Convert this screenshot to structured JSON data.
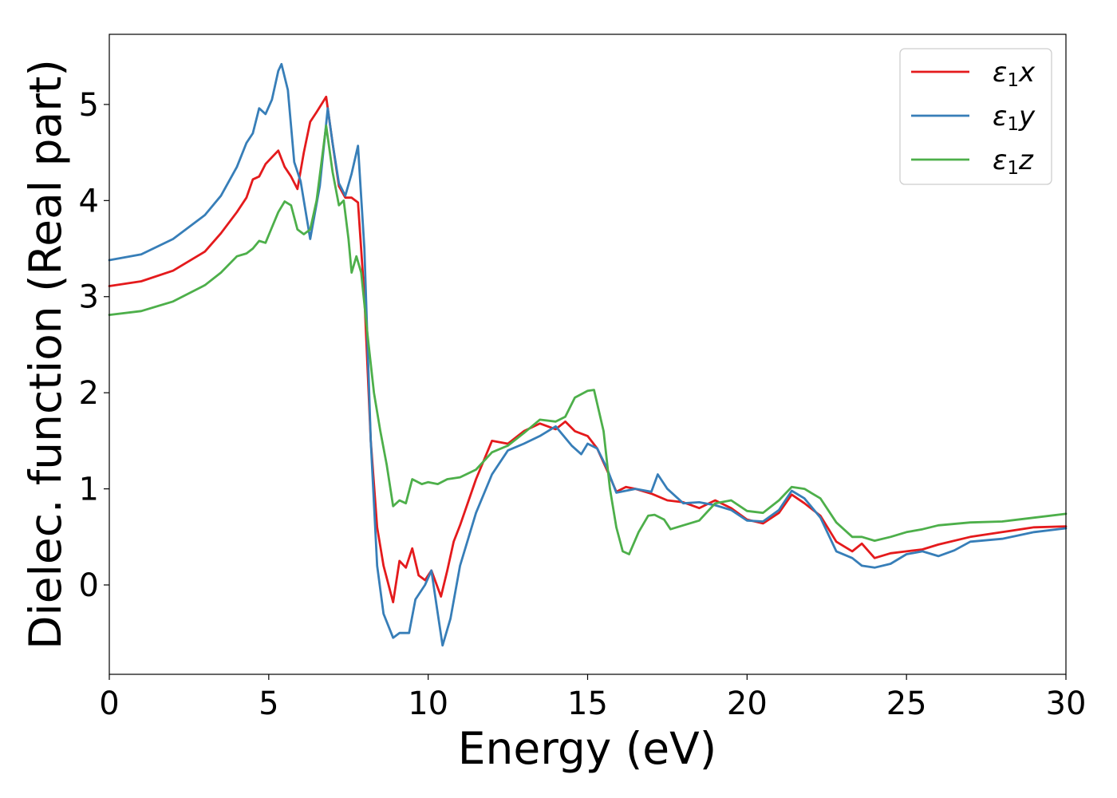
{
  "chart_data": {
    "type": "line",
    "title": "",
    "xlabel": "Energy (eV)",
    "ylabel": "Dielec. function (Real part)",
    "xlim": [
      0,
      30
    ],
    "ylim": [
      -0.93,
      5.73
    ],
    "xticks": [
      0,
      5,
      10,
      15,
      20,
      25,
      30
    ],
    "yticks": [
      0,
      1,
      2,
      3,
      4,
      5
    ],
    "grid": false,
    "legend_position": "top-right",
    "series": [
      {
        "name": "ε1x",
        "legend_base": "ε",
        "legend_sub": "1",
        "legend_tail": "x",
        "color": "#e41a1c",
        "x": [
          0,
          1,
          2,
          3,
          3.5,
          4,
          4.3,
          4.5,
          4.7,
          4.9,
          5.1,
          5.3,
          5.5,
          5.7,
          5.9,
          6.1,
          6.3,
          6.5,
          6.8,
          7.0,
          7.2,
          7.4,
          7.6,
          7.8,
          8.0,
          8.2,
          8.4,
          8.6,
          8.9,
          9.1,
          9.3,
          9.5,
          9.7,
          9.9,
          10.1,
          10.4,
          10.6,
          10.8,
          11.0,
          11.5,
          12.0,
          12.5,
          13.0,
          13.5,
          14.0,
          14.3,
          14.6,
          15.0,
          15.3,
          15.6,
          15.9,
          16.2,
          16.5,
          17.0,
          17.5,
          18.0,
          18.5,
          19.0,
          19.5,
          20.0,
          20.5,
          21.0,
          21.4,
          21.8,
          22.3,
          22.8,
          23.3,
          23.6,
          24.0,
          24.5,
          25.0,
          25.5,
          26.0,
          27.0,
          28.0,
          29.0,
          30.0
        ],
        "y": [
          3.11,
          3.16,
          3.27,
          3.47,
          3.66,
          3.88,
          4.03,
          4.22,
          4.25,
          4.38,
          4.45,
          4.52,
          4.35,
          4.25,
          4.12,
          4.5,
          4.82,
          4.92,
          5.08,
          4.6,
          4.15,
          4.03,
          4.03,
          3.98,
          3.0,
          1.5,
          0.6,
          0.2,
          -0.18,
          0.25,
          0.18,
          0.38,
          0.1,
          0.05,
          0.15,
          -0.12,
          0.15,
          0.45,
          0.62,
          1.1,
          1.5,
          1.47,
          1.6,
          1.68,
          1.62,
          1.7,
          1.6,
          1.55,
          1.42,
          1.2,
          0.97,
          1.02,
          1.0,
          0.95,
          0.88,
          0.86,
          0.8,
          0.88,
          0.8,
          0.68,
          0.64,
          0.75,
          0.94,
          0.85,
          0.72,
          0.45,
          0.35,
          0.43,
          0.28,
          0.33,
          0.35,
          0.37,
          0.42,
          0.5,
          0.55,
          0.6,
          0.61
        ]
      },
      {
        "name": "ε1y",
        "legend_base": "ε",
        "legend_sub": "1",
        "legend_tail": "y",
        "color": "#377eb8",
        "x": [
          0,
          1,
          2,
          3,
          3.5,
          4,
          4.3,
          4.5,
          4.7,
          4.9,
          5.1,
          5.3,
          5.4,
          5.6,
          5.8,
          6.0,
          6.3,
          6.6,
          6.85,
          7.0,
          7.2,
          7.4,
          7.6,
          7.8,
          8.0,
          8.2,
          8.4,
          8.6,
          8.9,
          9.1,
          9.4,
          9.6,
          9.9,
          10.1,
          10.3,
          10.45,
          10.7,
          11.0,
          11.5,
          12.0,
          12.5,
          13.0,
          13.5,
          14.0,
          14.5,
          14.8,
          15.0,
          15.3,
          15.6,
          15.9,
          16.2,
          16.5,
          17.0,
          17.2,
          17.5,
          18.0,
          18.5,
          19.0,
          19.5,
          20.0,
          20.5,
          21.0,
          21.4,
          21.8,
          22.3,
          22.8,
          23.3,
          23.6,
          24.0,
          24.5,
          25.0,
          25.5,
          26.0,
          26.5,
          27.0,
          28.0,
          29.0,
          30.0
        ],
        "y": [
          3.38,
          3.44,
          3.6,
          3.85,
          4.05,
          4.35,
          4.6,
          4.7,
          4.96,
          4.9,
          5.05,
          5.35,
          5.42,
          5.15,
          4.4,
          4.2,
          3.6,
          4.15,
          4.96,
          4.6,
          4.18,
          4.05,
          4.28,
          4.57,
          3.5,
          1.5,
          0.2,
          -0.3,
          -0.55,
          -0.5,
          -0.5,
          -0.15,
          0.0,
          0.15,
          -0.3,
          -0.63,
          -0.35,
          0.2,
          0.75,
          1.15,
          1.4,
          1.47,
          1.55,
          1.65,
          1.45,
          1.36,
          1.47,
          1.42,
          1.22,
          0.96,
          0.98,
          1.0,
          0.97,
          1.15,
          1.0,
          0.85,
          0.86,
          0.83,
          0.78,
          0.67,
          0.66,
          0.78,
          0.98,
          0.9,
          0.7,
          0.35,
          0.28,
          0.2,
          0.18,
          0.22,
          0.32,
          0.35,
          0.3,
          0.36,
          0.45,
          0.48,
          0.55,
          0.59
        ]
      },
      {
        "name": "ε1z",
        "legend_base": "ε",
        "legend_sub": "1",
        "legend_tail": "z",
        "color": "#4daf4a",
        "x": [
          0,
          1,
          2,
          3,
          3.5,
          4,
          4.3,
          4.5,
          4.7,
          4.9,
          5.1,
          5.3,
          5.5,
          5.7,
          5.9,
          6.1,
          6.3,
          6.5,
          6.8,
          7.0,
          7.2,
          7.35,
          7.5,
          7.6,
          7.75,
          7.9,
          8.1,
          8.3,
          8.5,
          8.7,
          8.9,
          9.1,
          9.3,
          9.5,
          9.8,
          10.0,
          10.3,
          10.6,
          11.0,
          11.5,
          12.0,
          12.5,
          13.0,
          13.5,
          14.0,
          14.3,
          14.6,
          15.0,
          15.2,
          15.5,
          15.7,
          15.9,
          16.1,
          16.3,
          16.6,
          16.9,
          17.1,
          17.4,
          17.6,
          18.0,
          18.5,
          19.0,
          19.5,
          20.0,
          20.5,
          21.0,
          21.4,
          21.8,
          22.3,
          22.8,
          23.3,
          23.6,
          24.0,
          24.5,
          25.0,
          25.5,
          26.0,
          27.0,
          28.0,
          29.0,
          30.0
        ],
        "y": [
          2.81,
          2.85,
          2.95,
          3.12,
          3.25,
          3.42,
          3.45,
          3.5,
          3.58,
          3.56,
          3.72,
          3.88,
          3.99,
          3.95,
          3.7,
          3.65,
          3.7,
          4.0,
          4.78,
          4.3,
          3.95,
          4.0,
          3.6,
          3.25,
          3.42,
          3.25,
          2.6,
          2.0,
          1.6,
          1.25,
          0.82,
          0.88,
          0.85,
          1.1,
          1.05,
          1.07,
          1.05,
          1.1,
          1.12,
          1.2,
          1.38,
          1.45,
          1.58,
          1.72,
          1.7,
          1.75,
          1.95,
          2.02,
          2.03,
          1.6,
          1.0,
          0.6,
          0.35,
          0.32,
          0.55,
          0.72,
          0.73,
          0.68,
          0.58,
          0.62,
          0.67,
          0.85,
          0.88,
          0.77,
          0.75,
          0.88,
          1.02,
          1.0,
          0.9,
          0.65,
          0.5,
          0.5,
          0.46,
          0.5,
          0.55,
          0.58,
          0.62,
          0.65,
          0.66,
          0.7,
          0.74
        ]
      }
    ]
  }
}
